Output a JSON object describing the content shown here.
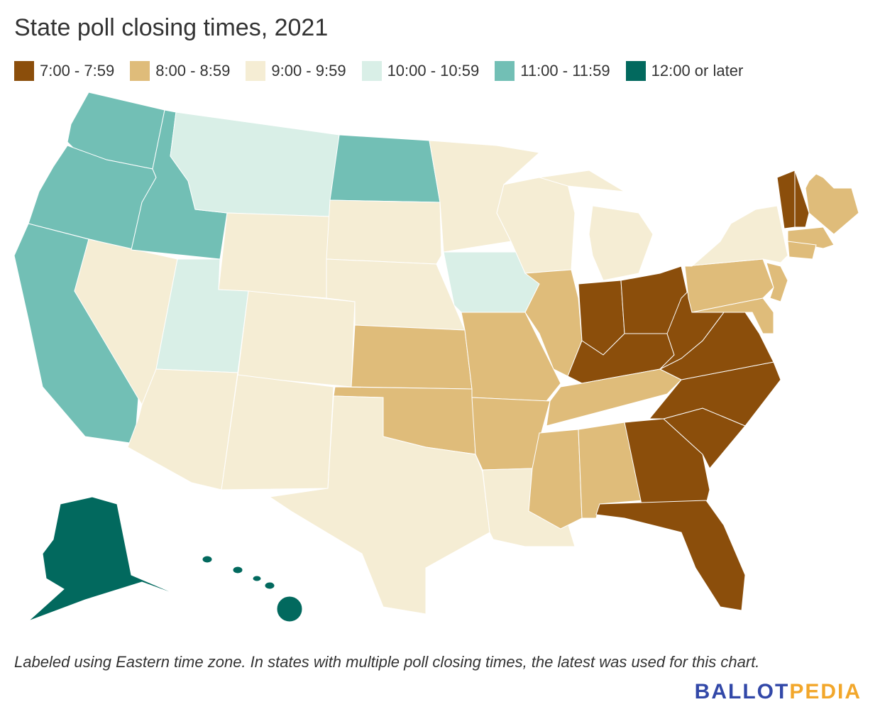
{
  "title": "State poll closing times, 2021",
  "legend": [
    {
      "label": "7:00 - 7:59",
      "color": "#8b4e0b"
    },
    {
      "label": "8:00 - 8:59",
      "color": "#dfbc7a"
    },
    {
      "label": "9:00 - 9:59",
      "color": "#f5edd4"
    },
    {
      "label": "10:00 - 10:59",
      "color": "#d9efe7"
    },
    {
      "label": "11:00 - 11:59",
      "color": "#72bfb5"
    },
    {
      "label": "12:00 or later",
      "color": "#02695e"
    }
  ],
  "states": {
    "WA": 4,
    "OR": 4,
    "CA": 4,
    "ID": 4,
    "ND": 4,
    "NV": 2,
    "MT": 3,
    "UT": 3,
    "IA": 3,
    "WY": 2,
    "CO": 2,
    "AZ": 2,
    "NM": 2,
    "SD": 2,
    "NE": 2,
    "TX": 2,
    "MN": 2,
    "WI": 2,
    "MI": 2,
    "MI2": 2,
    "LA": 2,
    "NY": 2,
    "KS": 1,
    "OK": 1,
    "MO": 1,
    "AR": 1,
    "IL": 1,
    "MS": 1,
    "AL": 1,
    "TN": 1,
    "PA": 1,
    "NJ": 1,
    "MDDE": 1,
    "ME": 1,
    "MA": 1,
    "CTRI": 1,
    "IN": 0,
    "OH": 0,
    "KY": 0,
    "WV": 0,
    "VA": 0,
    "NC": 0,
    "SC": 0,
    "GA": 0,
    "FL": 0,
    "VT": 0,
    "NH": 0,
    "AK": 5,
    "HI": 5
  },
  "note": "Labeled using Eastern time zone. In states with multiple poll closing times, the latest was used for this chart.",
  "logo": {
    "part1": "BALLOT",
    "part2": "PEDIA"
  }
}
